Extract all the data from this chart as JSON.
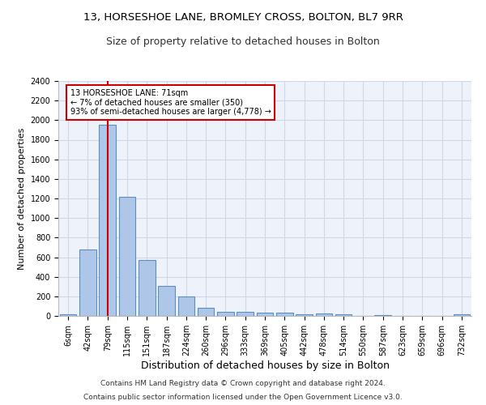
{
  "title1": "13, HORSESHOE LANE, BROMLEY CROSS, BOLTON, BL7 9RR",
  "title2": "Size of property relative to detached houses in Bolton",
  "xlabel": "Distribution of detached houses by size in Bolton",
  "ylabel": "Number of detached properties",
  "footer1": "Contains HM Land Registry data © Crown copyright and database right 2024.",
  "footer2": "Contains public sector information licensed under the Open Government Licence v3.0.",
  "bar_labels": [
    "6sqm",
    "42sqm",
    "79sqm",
    "115sqm",
    "151sqm",
    "187sqm",
    "224sqm",
    "260sqm",
    "296sqm",
    "333sqm",
    "369sqm",
    "405sqm",
    "442sqm",
    "478sqm",
    "514sqm",
    "550sqm",
    "587sqm",
    "623sqm",
    "659sqm",
    "696sqm",
    "732sqm"
  ],
  "bar_values": [
    15,
    680,
    1950,
    1220,
    570,
    305,
    200,
    80,
    45,
    38,
    35,
    30,
    20,
    25,
    15,
    2,
    10,
    2,
    2,
    2,
    20
  ],
  "bar_color": "#aec6e8",
  "bar_edgecolor": "#5a8fc0",
  "bar_linewidth": 0.8,
  "highlight_index": 2,
  "highlight_color": "#cc0000",
  "annotation_line1": "13 HORSESHOE LANE: 71sqm",
  "annotation_line2": "← 7% of detached houses are smaller (350)",
  "annotation_line3": "93% of semi-detached houses are larger (4,778) →",
  "annotation_box_color": "#ffffff",
  "annotation_box_edgecolor": "#cc0000",
  "ylim": [
    0,
    2400
  ],
  "yticks": [
    0,
    200,
    400,
    600,
    800,
    1000,
    1200,
    1400,
    1600,
    1800,
    2000,
    2200,
    2400
  ],
  "grid_color": "#d0d8e8",
  "bg_color": "#eef2fa",
  "title1_fontsize": 9.5,
  "title2_fontsize": 9,
  "xlabel_fontsize": 9,
  "ylabel_fontsize": 8,
  "footer_fontsize": 6.5,
  "tick_fontsize": 7,
  "annotation_fontsize": 7
}
